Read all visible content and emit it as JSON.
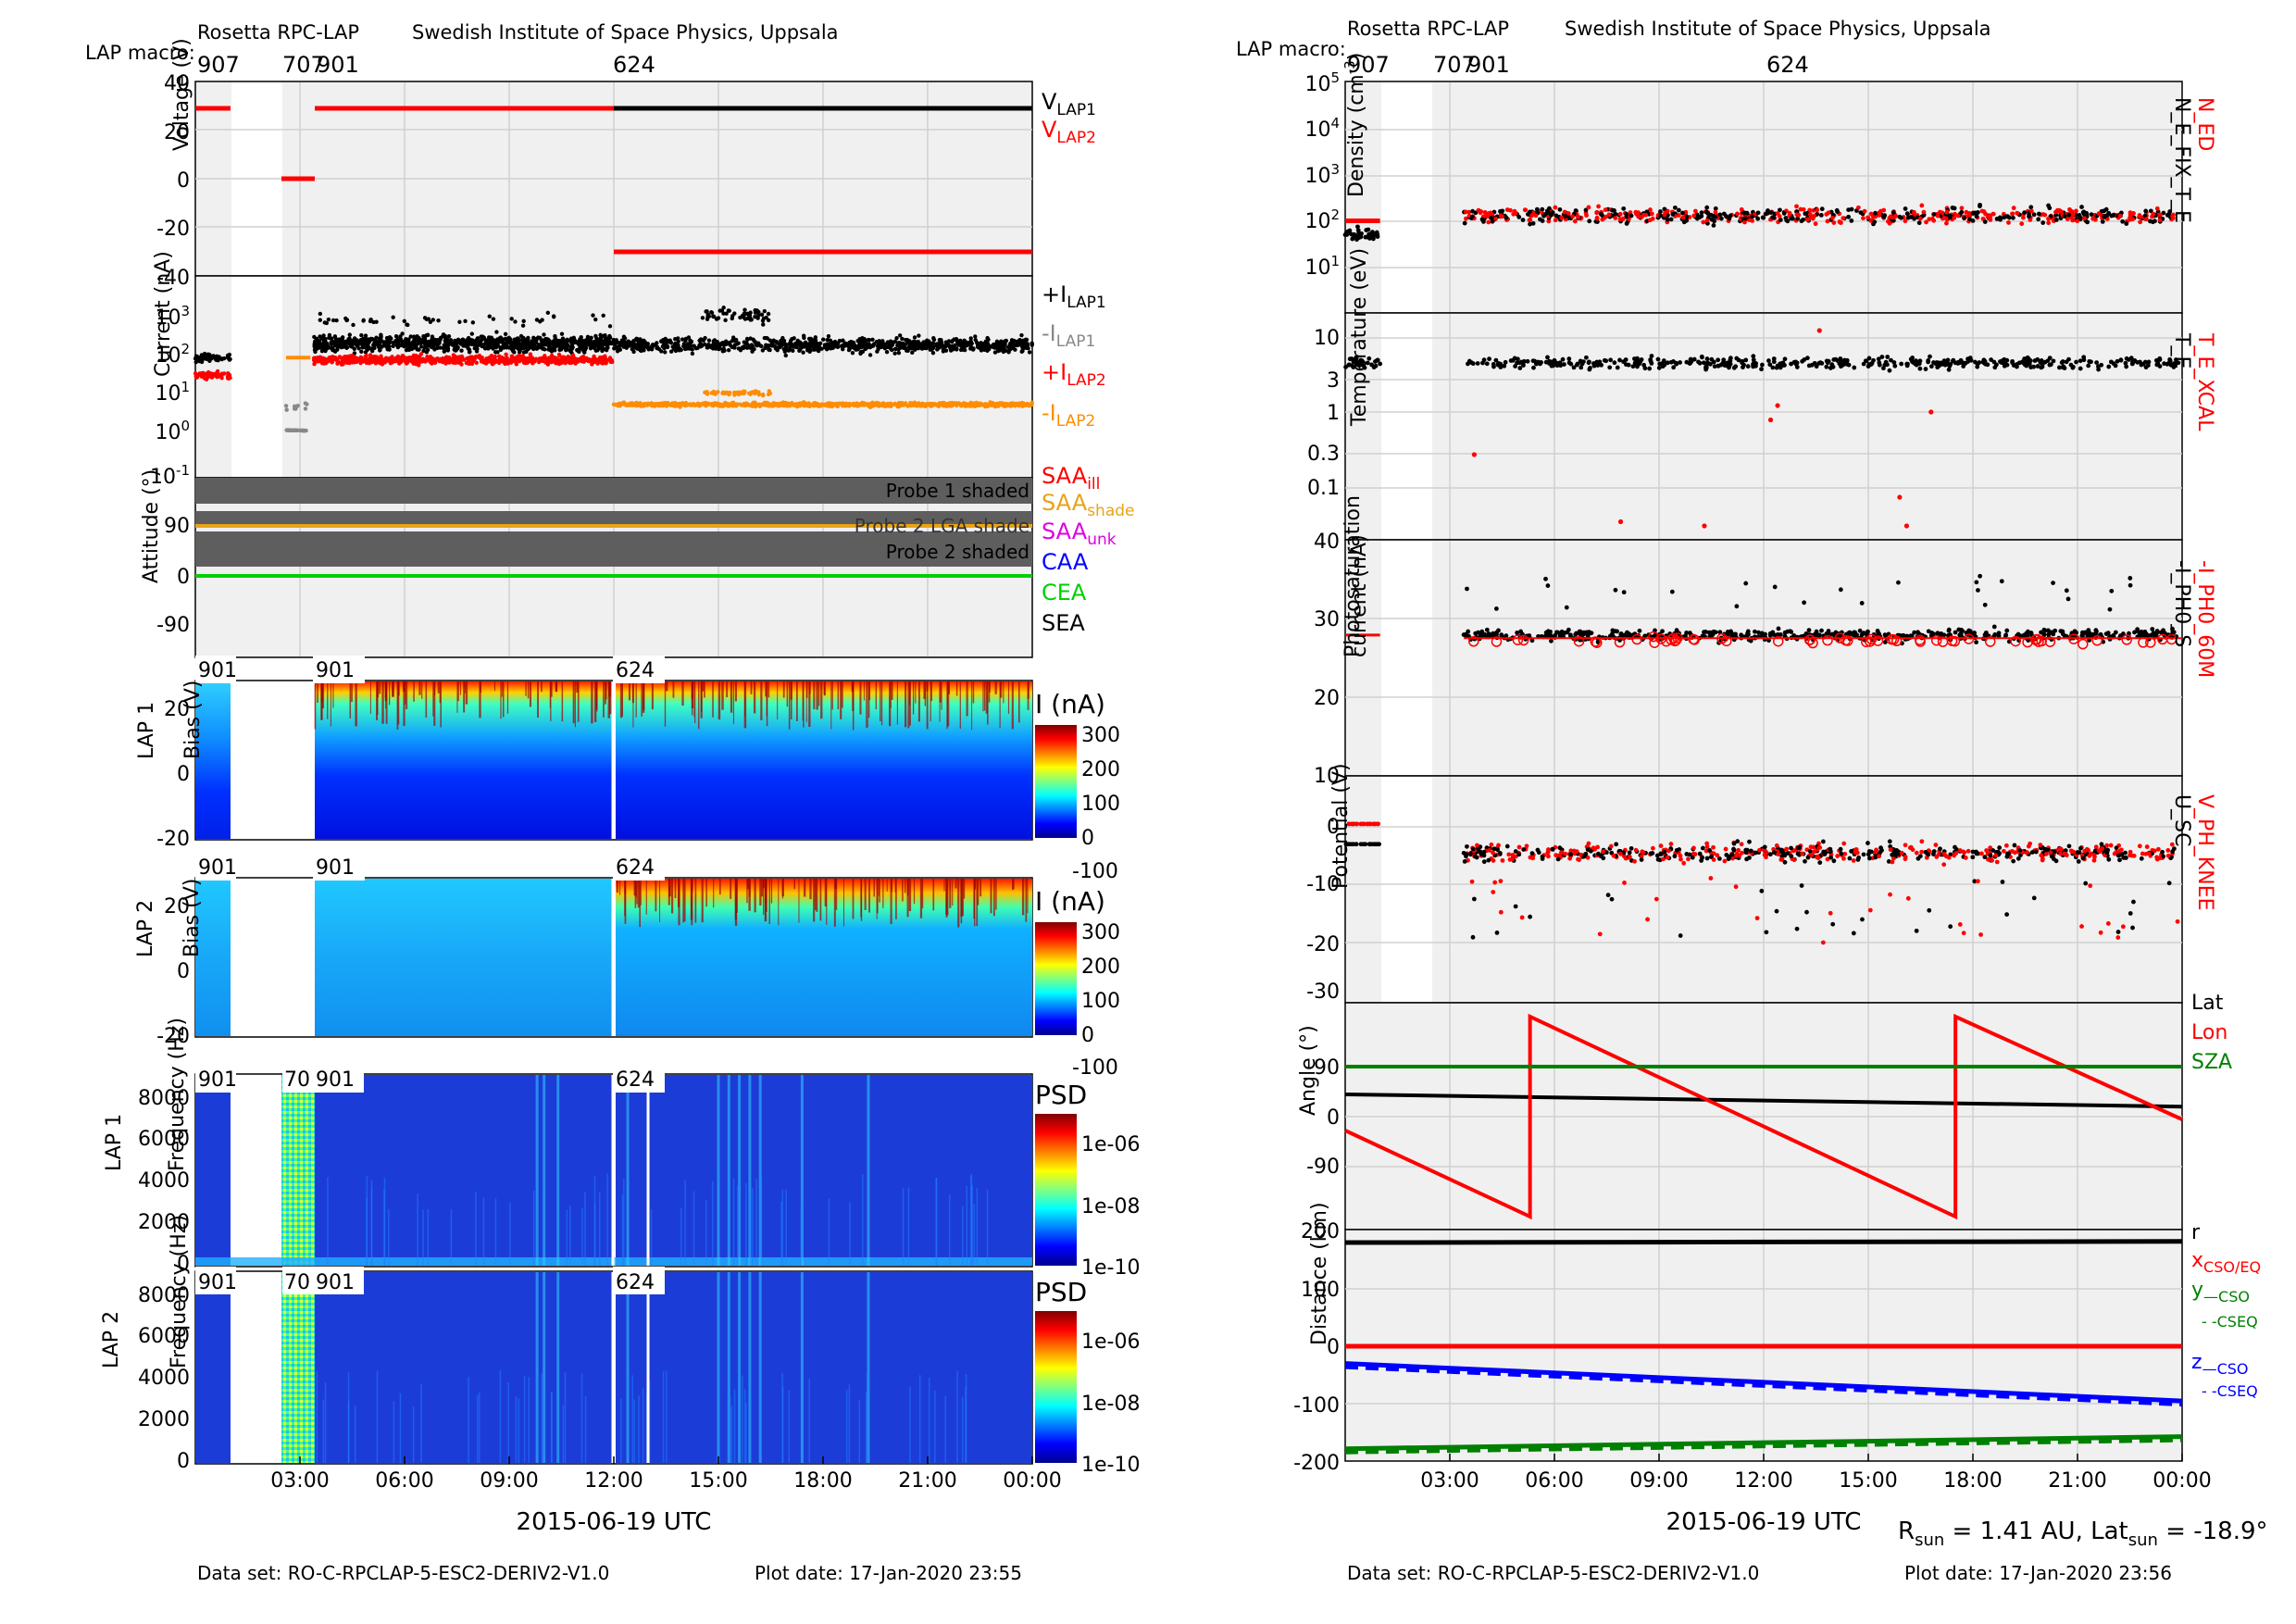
{
  "colors": {
    "black": "#000000",
    "red": "#ff0000",
    "gray": "#888888",
    "orange": "#ff8c00",
    "gold": "#e8a317",
    "magenta": "#e000e0",
    "blue": "#0000ff",
    "green": "#00d000",
    "darkgreen": "#008000",
    "shade": "#606060",
    "panel_bg": "#f0f0f0",
    "spec_bg": "#1c3cd8"
  },
  "left_figure": {
    "header": {
      "title": "Rosetta RPC-LAP",
      "institute": "Swedish Institute of Space Physics, Uppsala",
      "macro_label": "LAP macro:",
      "macro_ticks": [
        "907",
        "707",
        "901",
        "624"
      ]
    },
    "footer": {
      "dataset": "Data set: RO-C-RPCLAP-5-ESC2-DERIV2-V1.0",
      "plot_date": "Plot date: 17-Jan-2020 23:55"
    },
    "xlabel": "2015-06-19 UTC",
    "xtick_labels": [
      "03:00",
      "06:00",
      "09:00",
      "12:00",
      "15:00",
      "18:00",
      "21:00",
      "00:00"
    ],
    "spec_macro_labels": [
      "901",
      "901",
      "624"
    ],
    "spec_macro_labels_2": [
      "901",
      "70",
      "901",
      "624"
    ]
  },
  "right_figure": {
    "header": {
      "title": "Rosetta RPC-LAP",
      "institute": "Swedish Institute of Space Physics, Uppsala",
      "macro_label": "LAP macro:",
      "macro_ticks": [
        "907",
        "707",
        "901",
        "624"
      ]
    },
    "footer": {
      "dataset": "Data set: RO-C-RPCLAP-5-ESC2-DERIV2-V1.0",
      "plot_date": "Plot date: 17-Jan-2020 23:56"
    },
    "xlabel": "2015-06-19 UTC",
    "xtick_labels": [
      "03:00",
      "06:00",
      "09:00",
      "12:00",
      "15:00",
      "18:00",
      "21:00",
      "00:00"
    ],
    "rsun_text": "R",
    "rsun_sub": "sun",
    "rsun_value": " = 1.41 AU, Lat",
    "lat_sub": "sun",
    "lat_value": " = -18.9°"
  },
  "chart_data": [
    {
      "type": "line",
      "panel": "voltage",
      "ylabel": "Voltage (V)",
      "ylim": [
        -40,
        40
      ],
      "yticks": [
        "40",
        "20",
        "0",
        "-20",
        "-40"
      ],
      "series": [
        {
          "name": "V_LAP1",
          "segments": [
            {
              "x": [
                12.0,
                24.0
              ],
              "y": [
                29,
                29
              ]
            }
          ]
        },
        {
          "name": "V_LAP2",
          "segments": [
            {
              "x": [
                0.0,
                1.0
              ],
              "y": [
                29,
                29
              ]
            },
            {
              "x": [
                2.6,
                3.3
              ],
              "y": [
                0,
                0
              ]
            },
            {
              "x": [
                3.4,
                12.0
              ],
              "y": [
                29,
                29
              ]
            },
            {
              "x": [
                12.0,
                24.0
              ],
              "y": [
                -30,
                -30
              ]
            }
          ]
        }
      ],
      "legend": [
        "V_LAP1",
        "V_LAP2"
      ]
    },
    {
      "type": "scatter",
      "panel": "current",
      "ylabel": "Current (nA)",
      "yscale": "log",
      "ylim": [
        0.1,
        3000
      ],
      "yticks": [
        "10^3",
        "10^2",
        "10^1",
        "10^0",
        "10^-1"
      ],
      "series": [
        {
          "name": "+I_LAP1",
          "level": 350,
          "x_range": [
            3.4,
            24
          ]
        },
        {
          "name": "-I_LAP1",
          "level": 2,
          "x_range": [
            2.6,
            3.2
          ]
        },
        {
          "name": "+I_LAP2",
          "level": 120,
          "x_range": [
            3.4,
            12
          ]
        },
        {
          "name": "-I_LAP2",
          "level": 9,
          "x_range": [
            12,
            24
          ]
        }
      ],
      "legend": [
        "+I_LAP1",
        "-I_LAP1",
        "+I_LAP2",
        "-I_LAP2"
      ]
    },
    {
      "type": "line",
      "panel": "attitude",
      "ylabel": "Attitude (°)",
      "ylim": [
        -130,
        180
      ],
      "yticks": [
        "90",
        "0",
        "-90"
      ],
      "bands": [
        "Probe 1 shaded",
        "Probe 2 LGA shade",
        "Probe 2 shaded"
      ],
      "legend": [
        "SAA_ill",
        "SAA_shade",
        "SAA_unk",
        "CAA",
        "CEA",
        "SEA"
      ]
    },
    {
      "type": "heatmap",
      "panel": "lap1_bias",
      "ylabel": "LAP 1 Bias (V)",
      "ylim": [
        -25,
        30
      ],
      "yticks": [
        "20",
        "0",
        "-20"
      ],
      "colorbar_label": "I (nA)",
      "colorbar_ticks": [
        "300",
        "200",
        "100",
        "0",
        "-100"
      ]
    },
    {
      "type": "heatmap",
      "panel": "lap2_bias",
      "ylabel": "LAP 2 Bias (V)",
      "ylim": [
        -25,
        30
      ],
      "yticks": [
        "20",
        "0",
        "-20"
      ],
      "colorbar_label": "I (nA)",
      "colorbar_ticks": [
        "300",
        "200",
        "100",
        "0",
        "-100"
      ]
    },
    {
      "type": "heatmap",
      "panel": "lap1_freq",
      "ylabel": "LAP 1 Frequency (Hz)",
      "ylim": [
        0,
        9000
      ],
      "yticks": [
        "8000",
        "6000",
        "4000",
        "2000",
        "0"
      ],
      "colorbar_label": "PSD",
      "colorbar_ticks": [
        "1e-06",
        "1e-08",
        "1e-10"
      ]
    },
    {
      "type": "heatmap",
      "panel": "lap2_freq",
      "ylabel": "LAP 2 Frequency (Hz)",
      "ylim": [
        0,
        9000
      ],
      "yticks": [
        "8000",
        "6000",
        "4000",
        "2000",
        "0"
      ],
      "colorbar_label": "PSD",
      "colorbar_ticks": [
        "1e-06",
        "1e-08",
        "1e-10"
      ]
    },
    {
      "type": "scatter",
      "panel": "density",
      "ylabel": "Density (cm^-3)",
      "yscale": "log",
      "ylim": [
        1,
        100000
      ],
      "yticks": [
        "10^5",
        "10^4",
        "10^3",
        "10^2",
        "10^1"
      ],
      "series": [
        {
          "name": "N_ED",
          "level": 130
        },
        {
          "name": "N_E_FIX_T_E",
          "level": 130
        }
      ]
    },
    {
      "type": "scatter",
      "panel": "temperature",
      "ylabel": "Temperature (eV)",
      "yscale": "log",
      "ylim": [
        0.01,
        15
      ],
      "yticks": [
        "10",
        "3",
        "1",
        "0.3",
        "0.1"
      ],
      "series": [
        {
          "name": "T_E_XCAL"
        },
        {
          "name": "T_E",
          "level": 4
        }
      ]
    },
    {
      "type": "scatter",
      "panel": "photosaturation",
      "ylabel": "Photosaturation current (nA)",
      "ylim": [
        10,
        40
      ],
      "yticks": [
        "40",
        "30",
        "20",
        "10"
      ],
      "series": [
        {
          "name": "-I_PH0_60M",
          "level": 27.5
        },
        {
          "name": "-I_PH0_S",
          "level": 28
        }
      ]
    },
    {
      "type": "scatter",
      "panel": "potential",
      "ylabel": "Potential (V)",
      "ylim": [
        -32,
        3
      ],
      "yticks": [
        "0",
        "-10",
        "-20",
        "-30"
      ],
      "series": [
        {
          "name": "V_PH_KNEE",
          "level": -4
        },
        {
          "name": "U_SC",
          "level": -5
        }
      ]
    },
    {
      "type": "line",
      "panel": "angle",
      "ylabel": "Angle (°)",
      "ylim": [
        -200,
        200
      ],
      "yticks": [
        "90",
        "0",
        "-90"
      ],
      "series": [
        {
          "name": "Lat",
          "x": [
            0,
            24
          ],
          "y": [
            40,
            18
          ]
        },
        {
          "name": "Lon",
          "x": [
            0,
            5.3,
            5.3,
            17.5,
            17.5,
            24
          ],
          "y": [
            -25,
            -180,
            180,
            -180,
            180,
            -5
          ]
        },
        {
          "name": "SZA",
          "x": [
            0,
            24
          ],
          "y": [
            90,
            90
          ]
        }
      ]
    },
    {
      "type": "line",
      "panel": "distance",
      "ylabel": "Distance (km)",
      "ylim": [
        -200,
        200
      ],
      "yticks": [
        "200",
        "100",
        "0",
        "-100",
        "-200"
      ],
      "series": [
        {
          "name": "r",
          "x": [
            0,
            24
          ],
          "y": [
            180,
            182
          ]
        },
        {
          "name": "x_CSO/EQ",
          "x": [
            0,
            24
          ],
          "y": [
            0,
            0
          ]
        },
        {
          "name": "y_CSO",
          "x": [
            0,
            24
          ],
          "y": [
            -178,
            -157
          ]
        },
        {
          "name": "z_CSO",
          "x": [
            0,
            24
          ],
          "y": [
            -30,
            -95
          ]
        }
      ],
      "legend": [
        "r",
        "x_CSO/EQ",
        "y_CSO",
        "--CSEQ",
        "z_CSO",
        "--CSEQ"
      ]
    }
  ]
}
